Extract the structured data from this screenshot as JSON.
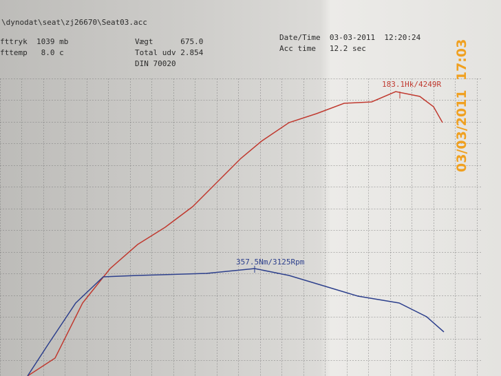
{
  "header": {
    "file": "\\dynodat\\seat\\zj26670\\Seat03.acc",
    "pressure": "fttryk  1039 mb",
    "temperature": "fttemp   8.0 c",
    "weight": "Vægt      675.0",
    "total": "Total udv 2.854",
    "standard": "DIN 70020",
    "datetime": "Date/Time  03-03-2011  12:20:24",
    "acc_time": "Acc time   12.2 sec"
  },
  "annotations": {
    "power_peak": "183.1Hk/4249R",
    "torque_peak": "357.5Nm/3125Rpm"
  },
  "stamp": "03/03/2011  17:03"
}
